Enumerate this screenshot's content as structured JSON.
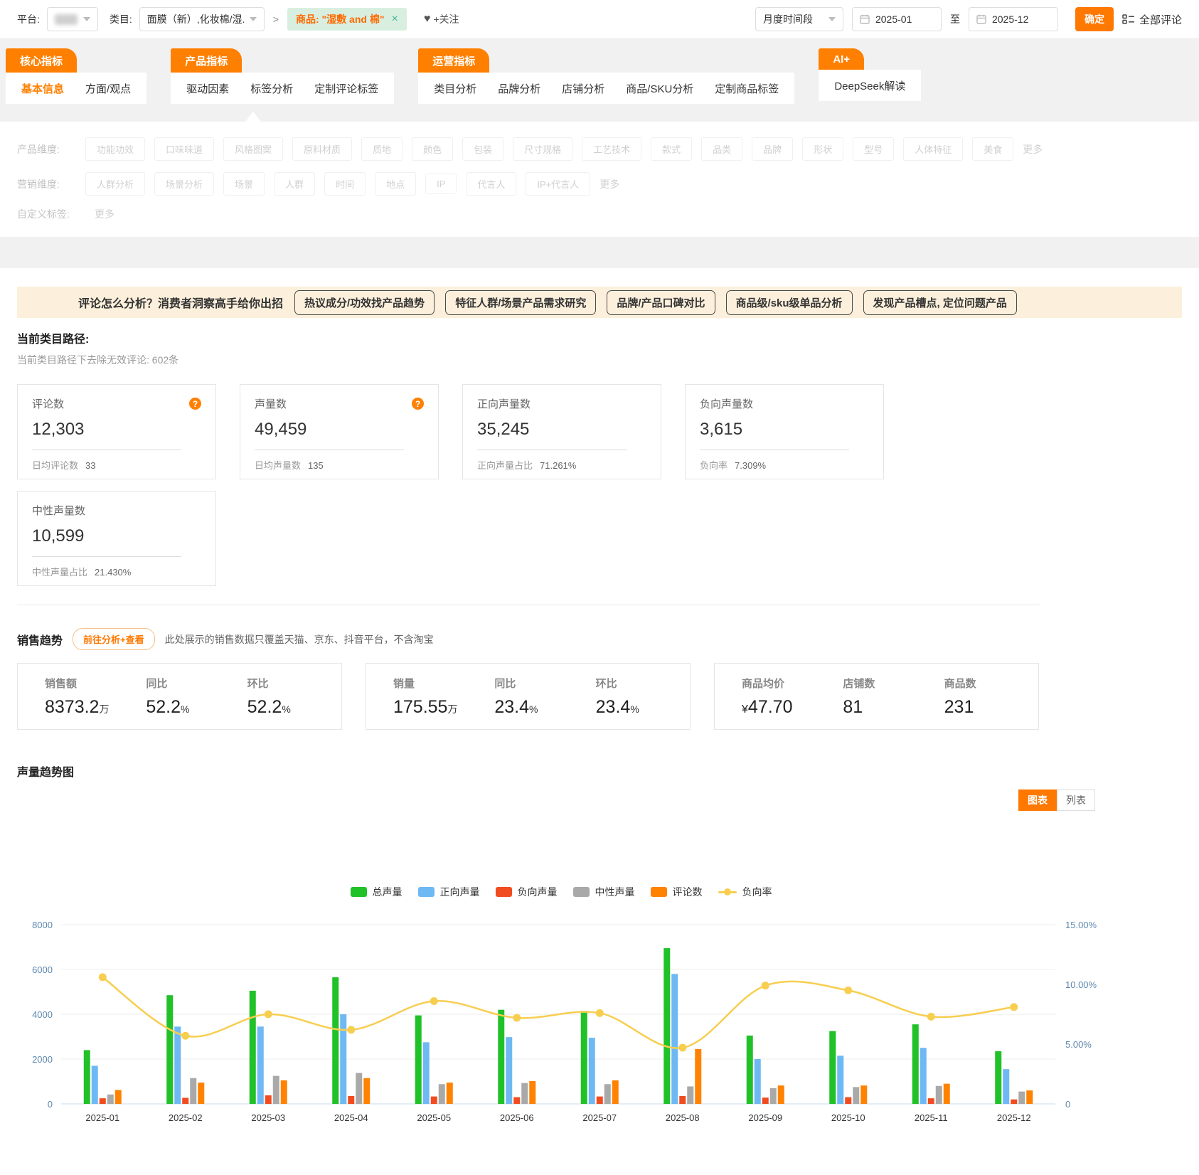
{
  "topbar": {
    "platform_label": "平台:",
    "category_label": "类目:",
    "category_value": "面膜（新）,化妆棉/湿...",
    "separator": ">",
    "product_chip": "商品: \"湿敷 and 棉\"",
    "chip_close": "×",
    "follow_label": "+关注",
    "heart_glyph": "♥",
    "period_select": "月度时间段",
    "date_from": "2025-01",
    "to_label": "至",
    "date_to": "2025-12",
    "confirm_label": "确定",
    "all_comments_label": "全部评论"
  },
  "tab_groups": [
    {
      "header": "核心指标",
      "items": [
        {
          "label": "基本信息",
          "active": true
        },
        {
          "label": "方面/观点",
          "active": false
        }
      ]
    },
    {
      "header": "产品指标",
      "items": [
        {
          "label": "驱动因素",
          "active": false
        },
        {
          "label": "标签分析",
          "active": false
        },
        {
          "label": "定制评论标签",
          "active": false
        }
      ]
    },
    {
      "header": "运营指标",
      "items": [
        {
          "label": "类目分析",
          "active": false
        },
        {
          "label": "品牌分析",
          "active": false
        },
        {
          "label": "店铺分析",
          "active": false
        },
        {
          "label": "商品/SKU分析",
          "active": false
        },
        {
          "label": "定制商品标签",
          "active": false
        }
      ]
    },
    {
      "header": "AI+",
      "items": [
        {
          "label": "DeepSeek解读",
          "active": false
        }
      ]
    }
  ],
  "filters": [
    {
      "label": "产品维度:",
      "chips": [
        "功能功效",
        "口味味道",
        "风格图案",
        "原料材质",
        "质地",
        "颜色",
        "包装",
        "尺寸规格",
        "工艺技术",
        "款式",
        "品类",
        "品牌",
        "形状",
        "型号",
        "人体特征",
        "美食"
      ],
      "more": "更多"
    },
    {
      "label": "营销维度:",
      "chips": [
        "人群分析",
        "场景分析",
        "场景",
        "人群",
        "时间",
        "地点",
        "IP",
        "代言人",
        "IP+代言人"
      ],
      "more": "更多"
    },
    {
      "label": "自定义标签:",
      "chips": [],
      "more": "更多"
    }
  ],
  "banner": {
    "title": "评论怎么分析？消费者洞察高手给你出招",
    "buttons": [
      "热议成分/功效找产品趋势",
      "特征人群/场景产品需求研究",
      "品牌/产品口碑对比",
      "商品级/sku级单品分析",
      "发现产品槽点, 定位问题产品"
    ]
  },
  "path_section": {
    "title": "当前类目路径:",
    "subtitle": "当前类目路径下去除无效评论: 602条"
  },
  "stat_cards": [
    {
      "label": "评论数",
      "value": "12,303",
      "help": true,
      "foot_label": "日均评论数",
      "foot_value": "33"
    },
    {
      "label": "声量数",
      "value": "49,459",
      "help": true,
      "foot_label": "日均声量数",
      "foot_value": "135"
    },
    {
      "label": "正向声量数",
      "value": "35,245",
      "help": false,
      "foot_label": "正向声量占比",
      "foot_value": "71.261%"
    },
    {
      "label": "负向声量数",
      "value": "3,615",
      "help": false,
      "foot_label": "负向率",
      "foot_value": "7.309%"
    },
    {
      "label": "中性声量数",
      "value": "10,599",
      "help": false,
      "foot_label": "中性声量占比",
      "foot_value": "21.430%"
    }
  ],
  "sales": {
    "title": "销售趋势",
    "button": "前往分析+查看",
    "note": "此处展示的销售数据只覆盖天猫、京东、抖音平台，不含淘宝",
    "groups": [
      [
        {
          "label": "销售额",
          "prefix": "",
          "value": "8373.2",
          "unit": "万"
        },
        {
          "label": "同比",
          "prefix": "",
          "value": "52.2",
          "unit": "%"
        },
        {
          "label": "环比",
          "prefix": "",
          "value": "52.2",
          "unit": "%"
        }
      ],
      [
        {
          "label": "销量",
          "prefix": "",
          "value": "175.55",
          "unit": "万"
        },
        {
          "label": "同比",
          "prefix": "",
          "value": "23.4",
          "unit": "%"
        },
        {
          "label": "环比",
          "prefix": "",
          "value": "23.4",
          "unit": "%"
        }
      ],
      [
        {
          "label": "商品均价",
          "prefix": "¥",
          "value": "47.70",
          "unit": ""
        },
        {
          "label": "店铺数",
          "prefix": "",
          "value": "81",
          "unit": ""
        },
        {
          "label": "商品数",
          "prefix": "",
          "value": "231",
          "unit": ""
        }
      ]
    ]
  },
  "chart_section": {
    "title": "声量趋势图",
    "toggles": [
      {
        "label": "图表",
        "active": true
      },
      {
        "label": "列表",
        "active": false
      }
    ]
  },
  "chart_data": {
    "type": "bar+line",
    "title": "声量趋势图",
    "categories": [
      "2025-01",
      "2025-02",
      "2025-03",
      "2025-04",
      "2025-05",
      "2025-06",
      "2025-07",
      "2025-08",
      "2025-09",
      "2025-10",
      "2025-11",
      "2025-12"
    ],
    "series": [
      {
        "name": "总声量",
        "type": "bar",
        "color": "#21C128",
        "values": [
          2400,
          4850,
          5050,
          5650,
          3950,
          4200,
          4150,
          6950,
          3050,
          3250,
          3550,
          2350
        ]
      },
      {
        "name": "正向声量",
        "type": "bar",
        "color": "#6EB9F4",
        "values": [
          1700,
          3450,
          3450,
          4000,
          2750,
          2980,
          2950,
          5800,
          2000,
          2150,
          2500,
          1550
        ]
      },
      {
        "name": "负向声量",
        "type": "bar",
        "color": "#F14C20",
        "values": [
          250,
          270,
          380,
          350,
          330,
          300,
          330,
          350,
          280,
          300,
          250,
          200
        ]
      },
      {
        "name": "中性声量",
        "type": "bar",
        "color": "#A9A9A9",
        "values": [
          420,
          1150,
          1250,
          1380,
          880,
          930,
          880,
          780,
          700,
          750,
          800,
          550
        ]
      },
      {
        "name": "评论数",
        "type": "bar",
        "color": "#FF8200",
        "values": [
          620,
          950,
          1050,
          1150,
          950,
          1020,
          1050,
          2450,
          820,
          820,
          900,
          600
        ]
      },
      {
        "name": "负向率",
        "type": "line",
        "color": "#F7CE50",
        "axis": "right",
        "values": [
          10.6,
          5.7,
          7.5,
          6.2,
          8.6,
          7.2,
          7.6,
          4.7,
          9.9,
          9.5,
          7.3,
          8.1
        ]
      }
    ],
    "y_left": {
      "min": 0,
      "max": 8000,
      "ticks": [
        0,
        2000,
        4000,
        6000,
        8000
      ]
    },
    "y_right": {
      "min": 0,
      "max": 15,
      "ticks": [
        0,
        5,
        10,
        15
      ],
      "suffix": "%"
    },
    "grid": true,
    "legend_position": "top-center"
  }
}
